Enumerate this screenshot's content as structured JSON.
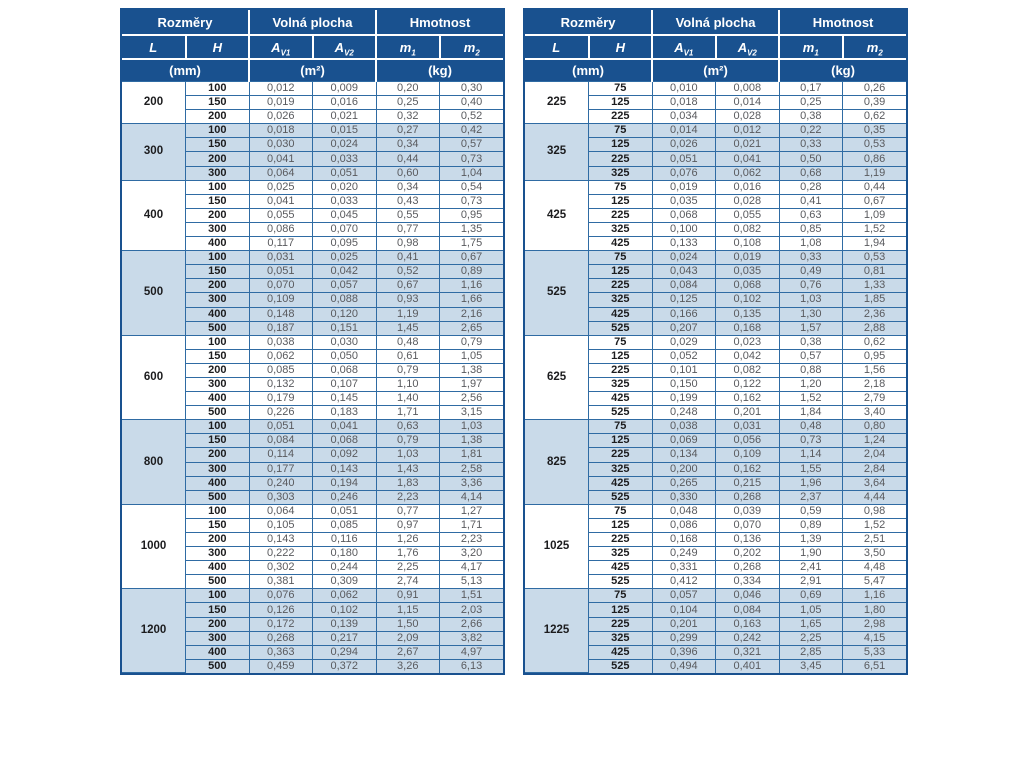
{
  "colors": {
    "header_bg": "#19518f",
    "band_bg": "#c9dae9",
    "inner_border": "#2f6ba3",
    "header_text": "#ffffff",
    "value_text": "#595a5e"
  },
  "header": {
    "top": [
      "Rozměry",
      "Volná plocha",
      "Hmotnost"
    ],
    "cols": [
      {
        "base": "L",
        "sub": ""
      },
      {
        "base": "H",
        "sub": ""
      },
      {
        "base": "A",
        "sub": "V1"
      },
      {
        "base": "A",
        "sub": "V2"
      },
      {
        "base": "m",
        "sub": "1"
      },
      {
        "base": "m",
        "sub": "2"
      }
    ],
    "units": [
      "(mm)",
      "(m²)",
      "(kg)"
    ]
  },
  "tables": [
    {
      "name": "left",
      "groups": [
        {
          "L": "200",
          "rows": [
            [
              "100",
              "0,012",
              "0,009",
              "0,20",
              "0,30"
            ],
            [
              "150",
              "0,019",
              "0,016",
              "0,25",
              "0,40"
            ],
            [
              "200",
              "0,026",
              "0,021",
              "0,32",
              "0,52"
            ]
          ]
        },
        {
          "L": "300",
          "rows": [
            [
              "100",
              "0,018",
              "0,015",
              "0,27",
              "0,42"
            ],
            [
              "150",
              "0,030",
              "0,024",
              "0,34",
              "0,57"
            ],
            [
              "200",
              "0,041",
              "0,033",
              "0,44",
              "0,73"
            ],
            [
              "300",
              "0,064",
              "0,051",
              "0,60",
              "1,04"
            ]
          ]
        },
        {
          "L": "400",
          "rows": [
            [
              "100",
              "0,025",
              "0,020",
              "0,34",
              "0,54"
            ],
            [
              "150",
              "0,041",
              "0,033",
              "0,43",
              "0,73"
            ],
            [
              "200",
              "0,055",
              "0,045",
              "0,55",
              "0,95"
            ],
            [
              "300",
              "0,086",
              "0,070",
              "0,77",
              "1,35"
            ],
            [
              "400",
              "0,117",
              "0,095",
              "0,98",
              "1,75"
            ]
          ]
        },
        {
          "L": "500",
          "rows": [
            [
              "100",
              "0,031",
              "0,025",
              "0,41",
              "0,67"
            ],
            [
              "150",
              "0,051",
              "0,042",
              "0,52",
              "0,89"
            ],
            [
              "200",
              "0,070",
              "0,057",
              "0,67",
              "1,16"
            ],
            [
              "300",
              "0,109",
              "0,088",
              "0,93",
              "1,66"
            ],
            [
              "400",
              "0,148",
              "0,120",
              "1,19",
              "2,16"
            ],
            [
              "500",
              "0,187",
              "0,151",
              "1,45",
              "2,65"
            ]
          ]
        },
        {
          "L": "600",
          "rows": [
            [
              "100",
              "0,038",
              "0,030",
              "0,48",
              "0,79"
            ],
            [
              "150",
              "0,062",
              "0,050",
              "0,61",
              "1,05"
            ],
            [
              "200",
              "0,085",
              "0,068",
              "0,79",
              "1,38"
            ],
            [
              "300",
              "0,132",
              "0,107",
              "1,10",
              "1,97"
            ],
            [
              "400",
              "0,179",
              "0,145",
              "1,40",
              "2,56"
            ],
            [
              "500",
              "0,226",
              "0,183",
              "1,71",
              "3,15"
            ]
          ]
        },
        {
          "L": "800",
          "rows": [
            [
              "100",
              "0,051",
              "0,041",
              "0,63",
              "1,03"
            ],
            [
              "150",
              "0,084",
              "0,068",
              "0,79",
              "1,38"
            ],
            [
              "200",
              "0,114",
              "0,092",
              "1,03",
              "1,81"
            ],
            [
              "300",
              "0,177",
              "0,143",
              "1,43",
              "2,58"
            ],
            [
              "400",
              "0,240",
              "0,194",
              "1,83",
              "3,36"
            ],
            [
              "500",
              "0,303",
              "0,246",
              "2,23",
              "4,14"
            ]
          ]
        },
        {
          "L": "1000",
          "rows": [
            [
              "100",
              "0,064",
              "0,051",
              "0,77",
              "1,27"
            ],
            [
              "150",
              "0,105",
              "0,085",
              "0,97",
              "1,71"
            ],
            [
              "200",
              "0,143",
              "0,116",
              "1,26",
              "2,23"
            ],
            [
              "300",
              "0,222",
              "0,180",
              "1,76",
              "3,20"
            ],
            [
              "400",
              "0,302",
              "0,244",
              "2,25",
              "4,17"
            ],
            [
              "500",
              "0,381",
              "0,309",
              "2,74",
              "5,13"
            ]
          ]
        },
        {
          "L": "1200",
          "rows": [
            [
              "100",
              "0,076",
              "0,062",
              "0,91",
              "1,51"
            ],
            [
              "150",
              "0,126",
              "0,102",
              "1,15",
              "2,03"
            ],
            [
              "200",
              "0,172",
              "0,139",
              "1,50",
              "2,66"
            ],
            [
              "300",
              "0,268",
              "0,217",
              "2,09",
              "3,82"
            ],
            [
              "400",
              "0,363",
              "0,294",
              "2,67",
              "4,97"
            ],
            [
              "500",
              "0,459",
              "0,372",
              "3,26",
              "6,13"
            ]
          ]
        }
      ]
    },
    {
      "name": "right",
      "groups": [
        {
          "L": "225",
          "rows": [
            [
              "75",
              "0,010",
              "0,008",
              "0,17",
              "0,26"
            ],
            [
              "125",
              "0,018",
              "0,014",
              "0,25",
              "0,39"
            ],
            [
              "225",
              "0,034",
              "0,028",
              "0,38",
              "0,62"
            ]
          ]
        },
        {
          "L": "325",
          "rows": [
            [
              "75",
              "0,014",
              "0,012",
              "0,22",
              "0,35"
            ],
            [
              "125",
              "0,026",
              "0,021",
              "0,33",
              "0,53"
            ],
            [
              "225",
              "0,051",
              "0,041",
              "0,50",
              "0,86"
            ],
            [
              "325",
              "0,076",
              "0,062",
              "0,68",
              "1,19"
            ]
          ]
        },
        {
          "L": "425",
          "rows": [
            [
              "75",
              "0,019",
              "0,016",
              "0,28",
              "0,44"
            ],
            [
              "125",
              "0,035",
              "0,028",
              "0,41",
              "0,67"
            ],
            [
              "225",
              "0,068",
              "0,055",
              "0,63",
              "1,09"
            ],
            [
              "325",
              "0,100",
              "0,082",
              "0,85",
              "1,52"
            ],
            [
              "425",
              "0,133",
              "0,108",
              "1,08",
              "1,94"
            ]
          ]
        },
        {
          "L": "525",
          "rows": [
            [
              "75",
              "0,024",
              "0,019",
              "0,33",
              "0,53"
            ],
            [
              "125",
              "0,043",
              "0,035",
              "0,49",
              "0,81"
            ],
            [
              "225",
              "0,084",
              "0,068",
              "0,76",
              "1,33"
            ],
            [
              "325",
              "0,125",
              "0,102",
              "1,03",
              "1,85"
            ],
            [
              "425",
              "0,166",
              "0,135",
              "1,30",
              "2,36"
            ],
            [
              "525",
              "0,207",
              "0,168",
              "1,57",
              "2,88"
            ]
          ]
        },
        {
          "L": "625",
          "rows": [
            [
              "75",
              "0,029",
              "0,023",
              "0,38",
              "0,62"
            ],
            [
              "125",
              "0,052",
              "0,042",
              "0,57",
              "0,95"
            ],
            [
              "225",
              "0,101",
              "0,082",
              "0,88",
              "1,56"
            ],
            [
              "325",
              "0,150",
              "0,122",
              "1,20",
              "2,18"
            ],
            [
              "425",
              "0,199",
              "0,162",
              "1,52",
              "2,79"
            ],
            [
              "525",
              "0,248",
              "0,201",
              "1,84",
              "3,40"
            ]
          ]
        },
        {
          "L": "825",
          "rows": [
            [
              "75",
              "0,038",
              "0,031",
              "0,48",
              "0,80"
            ],
            [
              "125",
              "0,069",
              "0,056",
              "0,73",
              "1,24"
            ],
            [
              "225",
              "0,134",
              "0,109",
              "1,14",
              "2,04"
            ],
            [
              "325",
              "0,200",
              "0,162",
              "1,55",
              "2,84"
            ],
            [
              "425",
              "0,265",
              "0,215",
              "1,96",
              "3,64"
            ],
            [
              "525",
              "0,330",
              "0,268",
              "2,37",
              "4,44"
            ]
          ]
        },
        {
          "L": "1025",
          "rows": [
            [
              "75",
              "0,048",
              "0,039",
              "0,59",
              "0,98"
            ],
            [
              "125",
              "0,086",
              "0,070",
              "0,89",
              "1,52"
            ],
            [
              "225",
              "0,168",
              "0,136",
              "1,39",
              "2,51"
            ],
            [
              "325",
              "0,249",
              "0,202",
              "1,90",
              "3,50"
            ],
            [
              "425",
              "0,331",
              "0,268",
              "2,41",
              "4,48"
            ],
            [
              "525",
              "0,412",
              "0,334",
              "2,91",
              "5,47"
            ]
          ]
        },
        {
          "L": "1225",
          "rows": [
            [
              "75",
              "0,057",
              "0,046",
              "0,69",
              "1,16"
            ],
            [
              "125",
              "0,104",
              "0,084",
              "1,05",
              "1,80"
            ],
            [
              "225",
              "0,201",
              "0,163",
              "1,65",
              "2,98"
            ],
            [
              "325",
              "0,299",
              "0,242",
              "2,25",
              "4,15"
            ],
            [
              "425",
              "0,396",
              "0,321",
              "2,85",
              "5,33"
            ],
            [
              "525",
              "0,494",
              "0,401",
              "3,45",
              "6,51"
            ]
          ]
        }
      ]
    }
  ]
}
